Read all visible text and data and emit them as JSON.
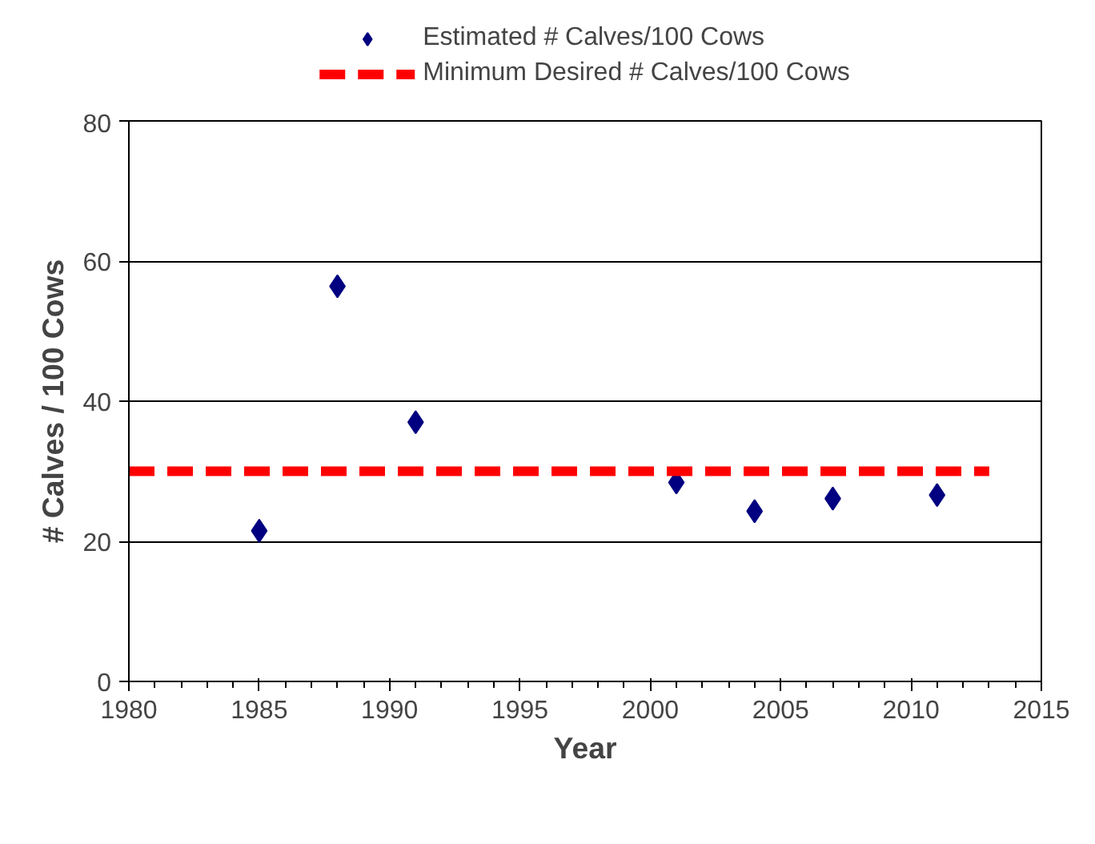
{
  "chart_data": {
    "type": "scatter",
    "xlabel": "Year",
    "ylabel": "# Calves / 100 Cows",
    "xlim": [
      1980,
      2015
    ],
    "xticks": [
      1980,
      1985,
      1990,
      1995,
      2000,
      2005,
      2010,
      2015
    ],
    "ylim": [
      0,
      80
    ],
    "yticks": [
      0,
      20,
      40,
      60,
      80
    ],
    "grid": "y",
    "legend": "top",
    "series": [
      {
        "name": "Estimated # Calves/100 Cows",
        "marker": "diamond",
        "color": "#000080",
        "x": [
          1985,
          1988,
          1991,
          2001,
          2004,
          2007,
          2011
        ],
        "values": [
          21.5,
          56.4,
          37.0,
          28.4,
          24.3,
          26.1,
          26.6
        ]
      },
      {
        "name": "Minimum Desired # Calves/100 Cows",
        "type": "line",
        "line_style": "dashed",
        "color": "#ff0000",
        "x": [
          1980,
          2013
        ],
        "values": [
          30,
          30
        ]
      }
    ]
  }
}
